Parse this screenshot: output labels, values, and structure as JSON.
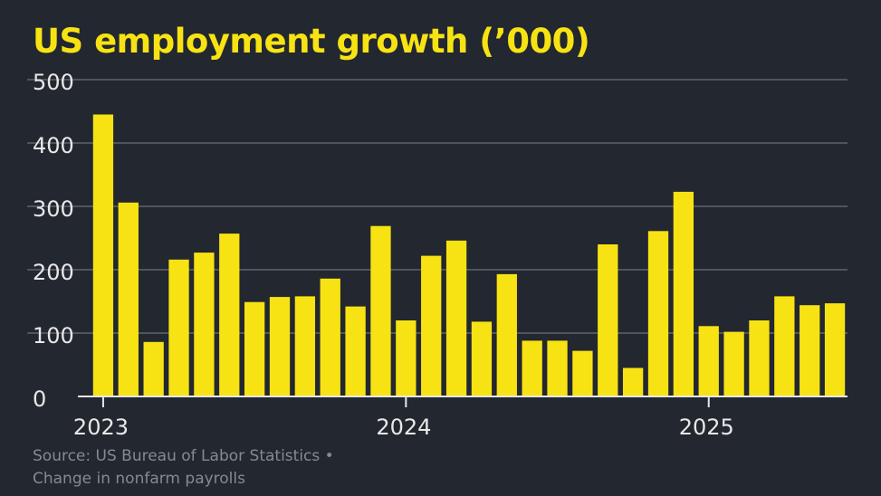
{
  "chart_data": {
    "type": "bar",
    "title": "US employment growth (’000)",
    "xlabel": "",
    "ylabel": "",
    "ylim": [
      0,
      500
    ],
    "yticks": [
      0,
      100,
      200,
      300,
      400,
      500
    ],
    "grid": true,
    "x_tick_labels": [
      {
        "label": "2023",
        "index": 0
      },
      {
        "label": "2024",
        "index": 12
      },
      {
        "label": "2025",
        "index": 24
      }
    ],
    "series": [
      {
        "values": [
          445,
          306,
          86,
          216,
          227,
          257,
          149,
          157,
          158,
          186,
          142,
          269,
          120,
          222,
          246,
          118,
          193,
          88,
          88,
          72,
          240,
          45,
          261,
          323,
          111,
          102,
          120,
          158,
          144,
          147
        ]
      }
    ],
    "colors": {
      "bar": "#f7e313",
      "background": "#23272f",
      "grid": "#5f636b",
      "text": "#e8e8e8",
      "title": "#f7e313"
    }
  },
  "source": {
    "line1": "Source: US Bureau of Labor Statistics •",
    "line2": "Change in nonfarm payrolls"
  }
}
